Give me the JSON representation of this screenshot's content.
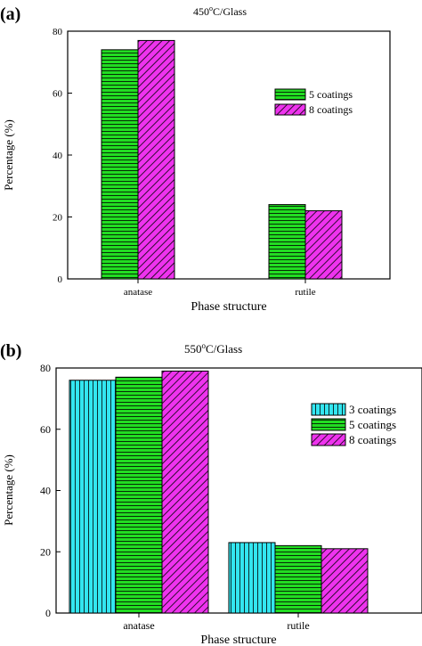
{
  "chart_data": [
    {
      "panel_label": "(a)",
      "type": "bar",
      "title": "450°C/Glass",
      "title_base": "450",
      "title_sup": "o",
      "title_rest": "C/Glass",
      "xlabel": "Phase structure",
      "ylabel": "Percentage (%)",
      "categories": [
        "anatase",
        "rutile"
      ],
      "ylim": [
        0,
        80
      ],
      "yticks": [
        "0",
        "20",
        "40",
        "60",
        "80"
      ],
      "legend_position": "center-right",
      "series": [
        {
          "name": "5 coatings",
          "values": [
            74,
            24
          ],
          "color": "#22dd22",
          "hatch": "horizontal"
        },
        {
          "name": "8 coatings",
          "values": [
            77,
            22
          ],
          "color": "#ee33ee",
          "hatch": "diagonal"
        }
      ]
    },
    {
      "panel_label": "(b)",
      "type": "bar",
      "title": "550°C/Glass",
      "title_base": "550",
      "title_sup": "o",
      "title_rest": "C/Glass",
      "xlabel": "Phase structure",
      "ylabel": "Percentage (%)",
      "categories": [
        "anatase",
        "rutile"
      ],
      "ylim": [
        0,
        80
      ],
      "yticks": [
        "0",
        "20",
        "40",
        "60",
        "80"
      ],
      "legend_position": "top-right",
      "series": [
        {
          "name": "3 coatings",
          "values": [
            76,
            23
          ],
          "color": "#33e6f0",
          "hatch": "vertical"
        },
        {
          "name": "5 coatings",
          "values": [
            77,
            22
          ],
          "color": "#22dd22",
          "hatch": "horizontal"
        },
        {
          "name": "8 coatings",
          "values": [
            79,
            21
          ],
          "color": "#ee33ee",
          "hatch": "diagonal"
        }
      ]
    }
  ]
}
